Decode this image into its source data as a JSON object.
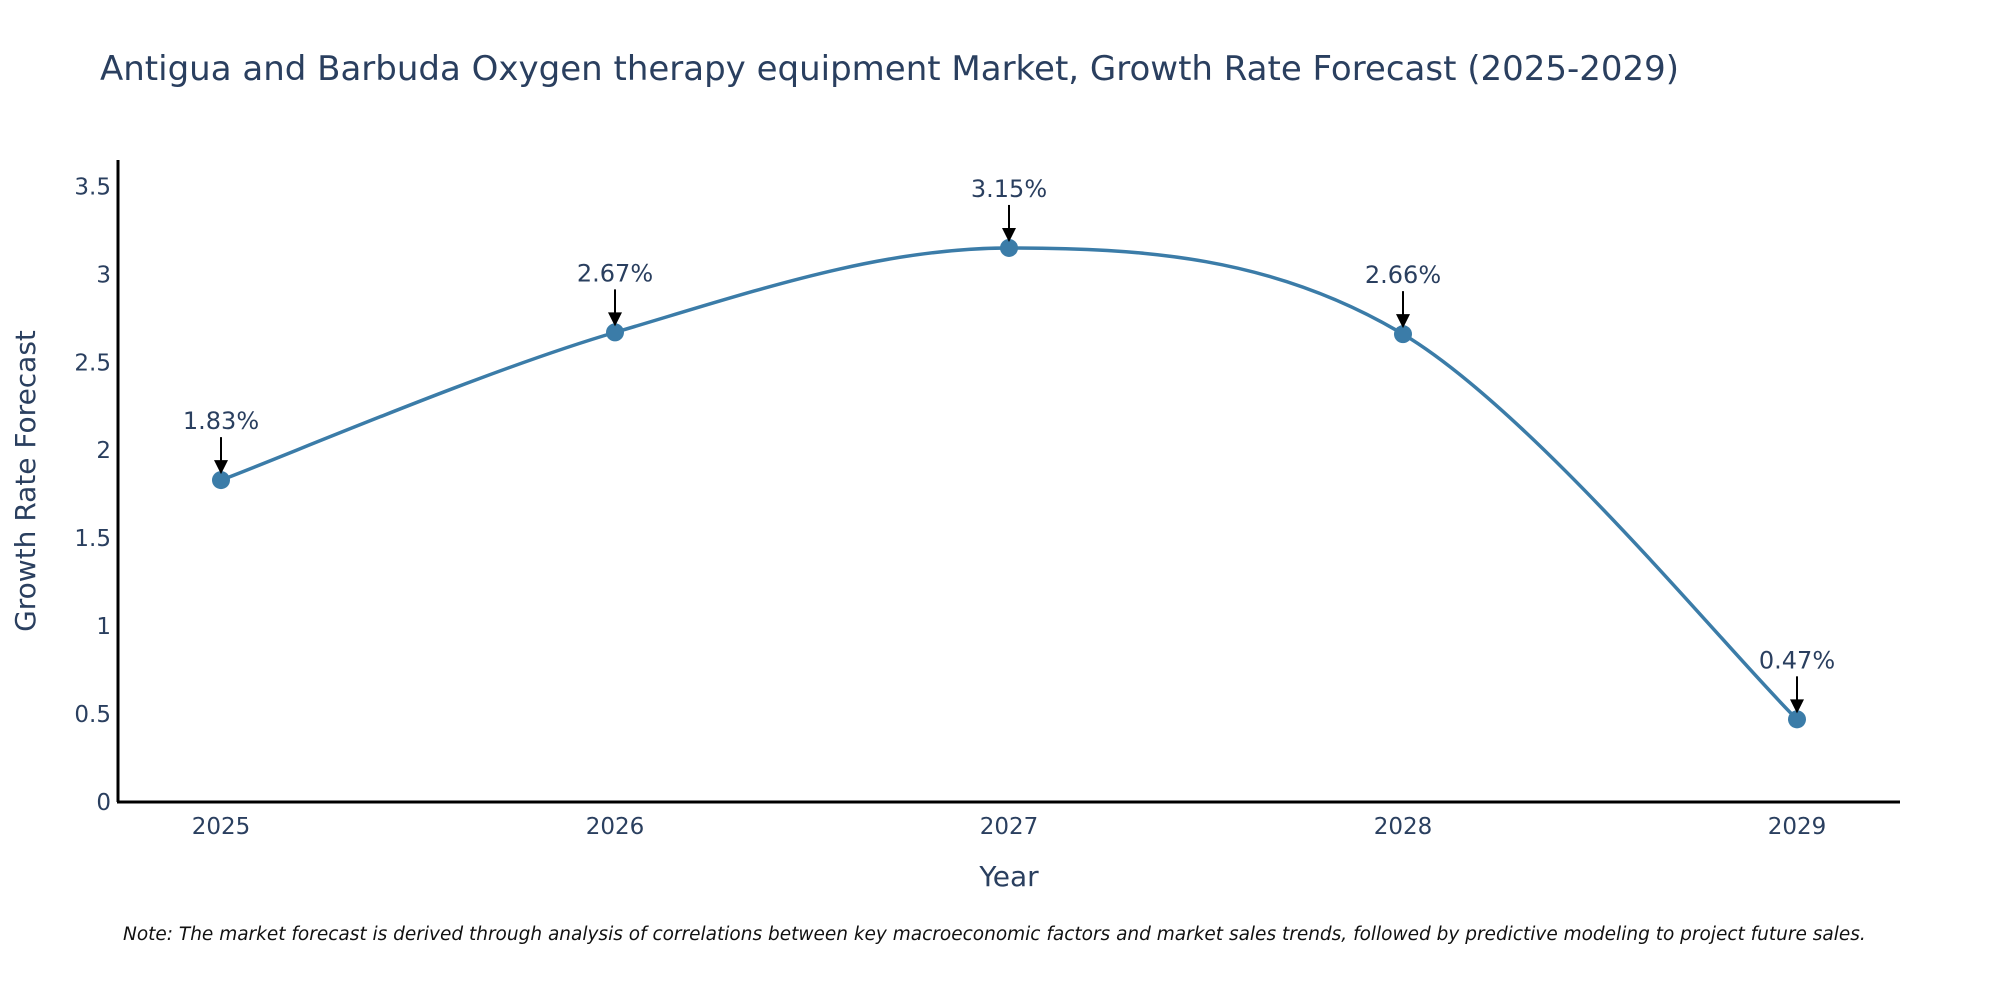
{
  "chart_data": {
    "type": "line",
    "title": "Antigua and Barbuda Oxygen therapy equipment Market, Growth Rate Forecast (2025-2029)",
    "xlabel": "Year",
    "ylabel": "Growth Rate Forecast",
    "categories": [
      "2025",
      "2026",
      "2027",
      "2028",
      "2029"
    ],
    "values": [
      1.83,
      2.67,
      3.15,
      2.66,
      0.47
    ],
    "data_labels": [
      "1.83%",
      "2.67%",
      "3.15%",
      "2.66%",
      "0.47%"
    ],
    "y_ticks": [
      0,
      0.5,
      1,
      1.5,
      2,
      2.5,
      3,
      3.5
    ],
    "y_tick_labels": [
      "0",
      "0.5",
      "1",
      "1.5",
      "2",
      "2.5",
      "3",
      "3.5"
    ],
    "ylim": [
      0,
      3.65
    ],
    "grid": false,
    "line_color": "#3b7ca8",
    "marker_color": "#3b7ca8",
    "note": "Note: The market forecast is derived through analysis of correlations between key macroeconomic factors and market sales trends, followed by predictive modeling to project future sales."
  }
}
